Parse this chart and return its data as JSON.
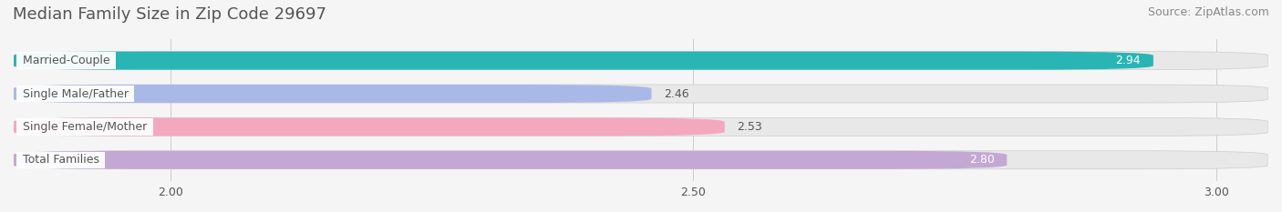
{
  "title": "Median Family Size in Zip Code 29697",
  "source": "Source: ZipAtlas.com",
  "categories": [
    "Married-Couple",
    "Single Male/Father",
    "Single Female/Mother",
    "Total Families"
  ],
  "values": [
    2.94,
    2.46,
    2.53,
    2.8
  ],
  "bar_colors": [
    "#2ab5b5",
    "#aab8e8",
    "#f4a8c0",
    "#c4a8d4"
  ],
  "label_text_color": "#555555",
  "value_text_colors": [
    "#ffffff",
    "#555555",
    "#555555",
    "#ffffff"
  ],
  "xlim": [
    1.85,
    3.05
  ],
  "xticks": [
    2.0,
    2.5,
    3.0
  ],
  "xtick_labels": [
    "2.00",
    "2.50",
    "3.00"
  ],
  "background_color": "#f5f5f5",
  "bar_background_color": "#e8e8e8",
  "title_fontsize": 13,
  "source_fontsize": 9,
  "label_fontsize": 9,
  "value_fontsize": 9,
  "bar_height": 0.55,
  "figsize": [
    14.06,
    2.33
  ]
}
